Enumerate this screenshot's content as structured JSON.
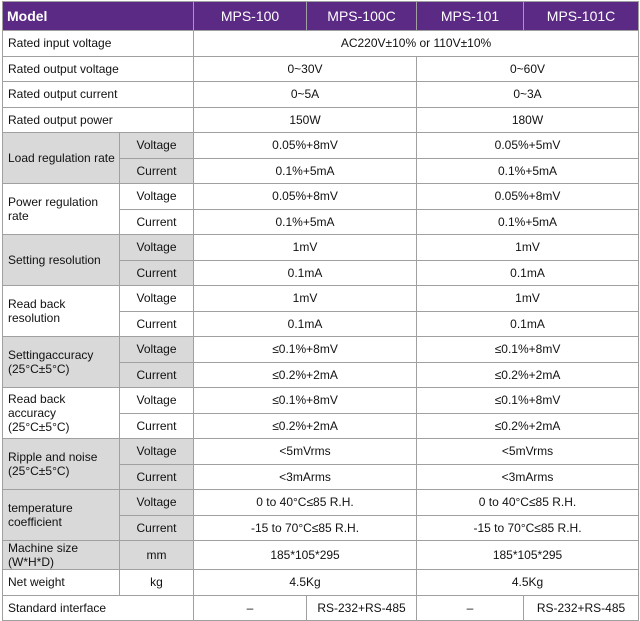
{
  "header": [
    "Model",
    "MPS-100",
    "MPS-100C",
    "MPS-101",
    "MPS-101C"
  ],
  "rows": [
    {
      "label": "Rated input voltage",
      "cells": [
        "AC220V±10% or 110V±10%"
      ]
    },
    {
      "label": "Rated output voltage",
      "cells": [
        "0~30V",
        "0~60V"
      ]
    },
    {
      "label": "Rated output current",
      "cells": [
        "0~5A",
        "0~3A"
      ]
    },
    {
      "label": "Rated output power",
      "cells": [
        "150W",
        "180W"
      ]
    },
    {
      "label": "Load regulation rate",
      "subrows": [
        {
          "sub": "Voltage",
          "cells": [
            "0.05%+8mV",
            "0.05%+5mV"
          ]
        },
        {
          "sub": "Current",
          "cells": [
            "0.1%+5mA",
            "0.1%+5mA"
          ]
        }
      ]
    },
    {
      "label": "Power regulation rate",
      "subrows": [
        {
          "sub": "Voltage",
          "cells": [
            "0.05%+8mV",
            "0.05%+8mV"
          ]
        },
        {
          "sub": "Current",
          "cells": [
            "0.1%+5mA",
            "0.1%+5mA"
          ]
        }
      ]
    },
    {
      "label": "Setting resolution",
      "subrows": [
        {
          "sub": "Voltage",
          "cells": [
            "1mV",
            "1mV"
          ]
        },
        {
          "sub": "Current",
          "cells": [
            "0.1mA",
            "0.1mA"
          ]
        }
      ]
    },
    {
      "label": "Read back resolution",
      "subrows": [
        {
          "sub": "Voltage",
          "cells": [
            "1mV",
            "1mV"
          ]
        },
        {
          "sub": "Current",
          "cells": [
            "0.1mA",
            "0.1mA"
          ]
        }
      ]
    },
    {
      "label": "Settingaccuracy (25°C±5°C)",
      "subrows": [
        {
          "sub": "Voltage",
          "cells": [
            "≤0.1%+8mV",
            "≤0.1%+8mV"
          ]
        },
        {
          "sub": "Current",
          "cells": [
            "≤0.2%+2mA",
            "≤0.2%+2mA"
          ]
        }
      ]
    },
    {
      "label": "Read back accuracy (25°C±5°C)",
      "subrows": [
        {
          "sub": "Voltage",
          "cells": [
            "≤0.1%+8mV",
            "≤0.1%+8mV"
          ]
        },
        {
          "sub": "Current",
          "cells": [
            "≤0.2%+2mA",
            "≤0.2%+2mA"
          ]
        }
      ]
    },
    {
      "label": "Ripple and noise (25°C±5°C)",
      "subrows": [
        {
          "sub": "Voltage",
          "cells": [
            "<5mVrms",
            "<5mVrms"
          ]
        },
        {
          "sub": "Current",
          "cells": [
            "<3mArms",
            "<3mArms"
          ]
        }
      ]
    },
    {
      "label": "temperature coefficient",
      "subrows": [
        {
          "sub": "Voltage",
          "cells": [
            "0 to 40°C≤85 R.H.",
            "0 to 40°C≤85 R.H."
          ]
        },
        {
          "sub": "Current",
          "cells": [
            "-15 to 70°C≤85 R.H.",
            "-15 to 70°C≤85 R.H."
          ]
        }
      ]
    },
    {
      "label": "Machine size (W*H*D)",
      "sub": "mm",
      "cells": [
        "185*105*295",
        "185*105*295"
      ]
    },
    {
      "label": "Net weight",
      "sub": "kg",
      "cells": [
        "4.5Kg",
        "4.5Kg"
      ]
    },
    {
      "label": "Standard interface",
      "cells": [
        "–",
        "RS-232+RS-485",
        "–",
        "RS-232+RS-485"
      ]
    }
  ]
}
